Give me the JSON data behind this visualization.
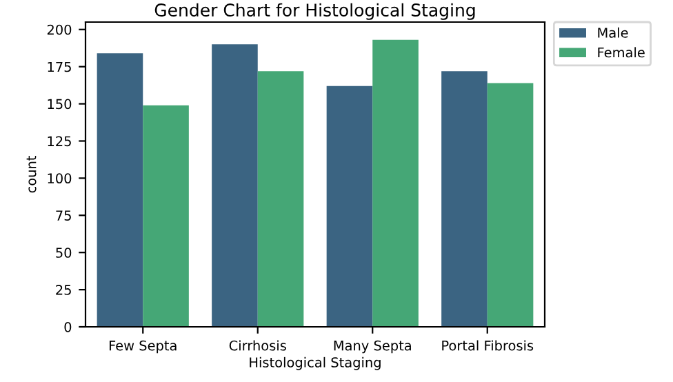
{
  "chart_data": {
    "type": "bar",
    "title": "Gender Chart for Histological Staging",
    "xlabel": "Histological Staging",
    "ylabel": "count",
    "categories": [
      "Few Septa",
      "Cirrhosis",
      "Many Septa",
      "Portal Fibrosis"
    ],
    "series": [
      {
        "name": "Male",
        "color": "#3b6482",
        "values": [
          184,
          190,
          162,
          172
        ]
      },
      {
        "name": "Female",
        "color": "#45a776",
        "values": [
          149,
          172,
          193,
          164
        ]
      }
    ],
    "ylim": [
      0,
      205
    ],
    "yticks": [
      0,
      25,
      50,
      75,
      100,
      125,
      150,
      175,
      200
    ],
    "grid": false,
    "legend": "top right"
  }
}
